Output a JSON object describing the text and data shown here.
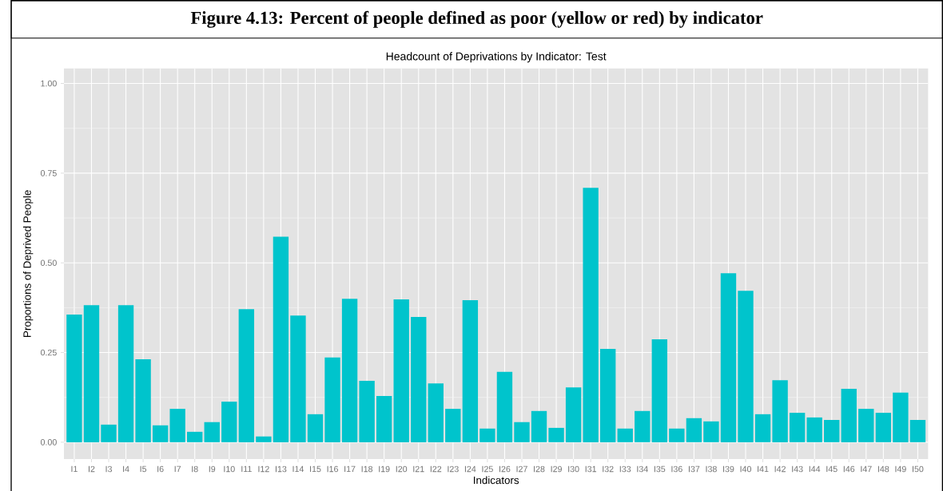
{
  "chart_data": {
    "type": "bar",
    "title": "Figure 4.13: Percent of people defined as poor (yellow or red) by indicator",
    "subtitle": "Headcount of Deprivations by Indicator: Test",
    "xlabel": "Indicators",
    "ylabel": "Proportions of Deprived People",
    "categories": [
      "I1",
      "I2",
      "I3",
      "I4",
      "I5",
      "I6",
      "I7",
      "I8",
      "I9",
      "I10",
      "I11",
      "I12",
      "I13",
      "I14",
      "I15",
      "I16",
      "I17",
      "I18",
      "I19",
      "I20",
      "I21",
      "I22",
      "I23",
      "I24",
      "I25",
      "I26",
      "I27",
      "I28",
      "I29",
      "I30",
      "I31",
      "I32",
      "I33",
      "I34",
      "I35",
      "I36",
      "I37",
      "I38",
      "I39",
      "I40",
      "I41",
      "I42",
      "I43",
      "I44",
      "I45",
      "I46",
      "I47",
      "I48",
      "I49",
      "I50"
    ],
    "values": [
      0.356,
      0.382,
      0.049,
      0.382,
      0.231,
      0.047,
      0.093,
      0.029,
      0.056,
      0.113,
      0.371,
      0.016,
      0.573,
      0.353,
      0.078,
      0.236,
      0.4,
      0.171,
      0.129,
      0.398,
      0.349,
      0.164,
      0.093,
      0.396,
      0.038,
      0.196,
      0.056,
      0.087,
      0.04,
      0.153,
      0.709,
      0.26,
      0.038,
      0.087,
      0.287,
      0.038,
      0.067,
      0.058,
      0.471,
      0.422,
      0.078,
      0.173,
      0.082,
      0.069,
      0.062,
      0.149,
      0.093,
      0.082,
      0.138,
      0.062
    ],
    "color": "#00c4cc",
    "ylim": [
      -0.047,
      1.042
    ],
    "yticks": [
      {
        "value": 0,
        "label": "0.00"
      },
      {
        "value": 0.25,
        "label": "0.25"
      },
      {
        "value": 0.5,
        "label": "0.50"
      },
      {
        "value": 0.75,
        "label": "0.75"
      },
      {
        "value": 1,
        "label": "1.00"
      }
    ],
    "grid": true
  }
}
